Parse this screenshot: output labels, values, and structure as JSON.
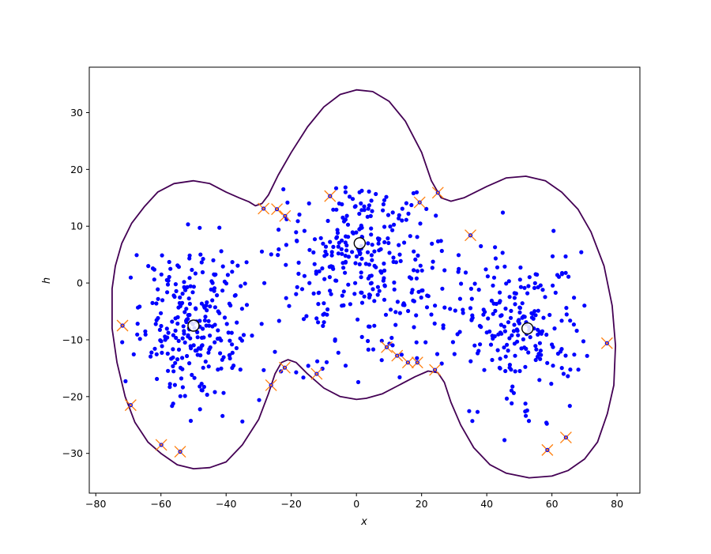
{
  "chart_data": {
    "type": "scatter",
    "title": "",
    "xlabel": "x",
    "ylabel": "h",
    "xlim": [
      -82,
      87
    ],
    "ylim": [
      -37,
      38
    ],
    "xticks": [
      -80,
      -60,
      -40,
      -20,
      0,
      20,
      40,
      60,
      80
    ],
    "yticks": [
      -30,
      -20,
      -10,
      0,
      10,
      20,
      30
    ],
    "grid": false,
    "legend": "none",
    "colors": {
      "points": "#0000ff",
      "contour": "#440154",
      "outlier_marker": "#ff7f0e",
      "center_marker": "#000000"
    },
    "series": [
      {
        "kind": "samples",
        "marker": "filled-circle",
        "count": 800,
        "clusters": [
          {
            "center": [
              -50,
              -7
            ],
            "spread": [
              9,
              7
            ],
            "count": 260
          },
          {
            "center": [
              1,
              7
            ],
            "spread": [
              12,
              5
            ],
            "count": 200
          },
          {
            "center": [
              10,
              -3
            ],
            "spread": [
              20,
              7
            ],
            "count": 140
          },
          {
            "center": [
              50,
              -8
            ],
            "spread": [
              9,
              7
            ],
            "count": 200
          }
        ]
      },
      {
        "kind": "cluster-centers",
        "marker": "open-circle",
        "points": [
          [
            -50,
            -7.5
          ],
          [
            1,
            7
          ],
          [
            52.5,
            -8
          ]
        ]
      },
      {
        "kind": "outliers",
        "marker": "x-with-dot",
        "points": [
          [
            -71.8,
            -7.5
          ],
          [
            -69.3,
            -21.5
          ],
          [
            -59.9,
            -28.5
          ],
          [
            -54.1,
            -29.7
          ],
          [
            -26.2,
            -18
          ],
          [
            -22,
            -14.9
          ],
          [
            -12.2,
            -16
          ],
          [
            -28.5,
            13.1
          ],
          [
            -24.4,
            13
          ],
          [
            -21.9,
            11.8
          ],
          [
            -8.1,
            15.3
          ],
          [
            9.3,
            -11.3
          ],
          [
            12.5,
            -12.8
          ],
          [
            15.8,
            -14
          ],
          [
            18.7,
            -14
          ],
          [
            24.1,
            -15.3
          ],
          [
            19.4,
            14.2
          ],
          [
            25,
            15.9
          ],
          [
            35,
            8.4
          ],
          [
            58.6,
            -29.4
          ],
          [
            64.3,
            -27.2
          ],
          [
            76.9,
            -10.6
          ]
        ]
      },
      {
        "kind": "boundary-contour",
        "points": [
          [
            -29,
            14
          ],
          [
            -27,
            15.5
          ],
          [
            -24,
            19
          ],
          [
            -20,
            23
          ],
          [
            -15,
            27.5
          ],
          [
            -10,
            31
          ],
          [
            -5,
            33.2
          ],
          [
            0,
            34
          ],
          [
            5,
            33.7
          ],
          [
            10,
            32
          ],
          [
            15,
            28.5
          ],
          [
            20,
            23
          ],
          [
            23,
            18
          ],
          [
            26,
            15
          ],
          [
            29,
            14.4
          ],
          [
            33,
            15
          ],
          [
            40,
            17
          ],
          [
            46,
            18.5
          ],
          [
            52,
            18.8
          ],
          [
            58,
            18
          ],
          [
            63,
            16
          ],
          [
            68,
            13
          ],
          [
            72,
            9
          ],
          [
            76,
            3
          ],
          [
            78.5,
            -4
          ],
          [
            79.5,
            -11
          ],
          [
            79,
            -18
          ],
          [
            77,
            -23
          ],
          [
            74,
            -28
          ],
          [
            70,
            -31
          ],
          [
            65,
            -33
          ],
          [
            60,
            -34
          ],
          [
            53,
            -34.3
          ],
          [
            46,
            -33.5
          ],
          [
            41,
            -32
          ],
          [
            36,
            -29
          ],
          [
            32,
            -25
          ],
          [
            29,
            -21
          ],
          [
            27,
            -17.5
          ],
          [
            25,
            -15.8
          ],
          [
            22,
            -15.5
          ],
          [
            18,
            -16.5
          ],
          [
            13,
            -18
          ],
          [
            8,
            -19.5
          ],
          [
            3,
            -20.3
          ],
          [
            0,
            -20.5
          ],
          [
            -5,
            -20
          ],
          [
            -10,
            -18.5
          ],
          [
            -15,
            -16
          ],
          [
            -18.5,
            -14
          ],
          [
            -21,
            -13.5
          ],
          [
            -23,
            -14
          ],
          [
            -25,
            -16
          ],
          [
            -27,
            -19.5
          ],
          [
            -30,
            -24
          ],
          [
            -35,
            -28.5
          ],
          [
            -40,
            -31.5
          ],
          [
            -45,
            -32.5
          ],
          [
            -50,
            -32.7
          ],
          [
            -55,
            -32
          ],
          [
            -60,
            -30
          ],
          [
            -64,
            -28
          ],
          [
            -68,
            -24.5
          ],
          [
            -71,
            -20
          ],
          [
            -73.5,
            -14
          ],
          [
            -75,
            -8
          ],
          [
            -75,
            -1
          ],
          [
            -74,
            3
          ],
          [
            -72,
            7
          ],
          [
            -69,
            10.5
          ],
          [
            -65,
            13.5
          ],
          [
            -61,
            16
          ],
          [
            -56,
            17.5
          ],
          [
            -50,
            18
          ],
          [
            -45,
            17.5
          ],
          [
            -40,
            16
          ],
          [
            -36,
            15
          ],
          [
            -33,
            14.3
          ],
          [
            -31,
            13.6
          ],
          [
            -29,
            14
          ]
        ]
      }
    ]
  }
}
